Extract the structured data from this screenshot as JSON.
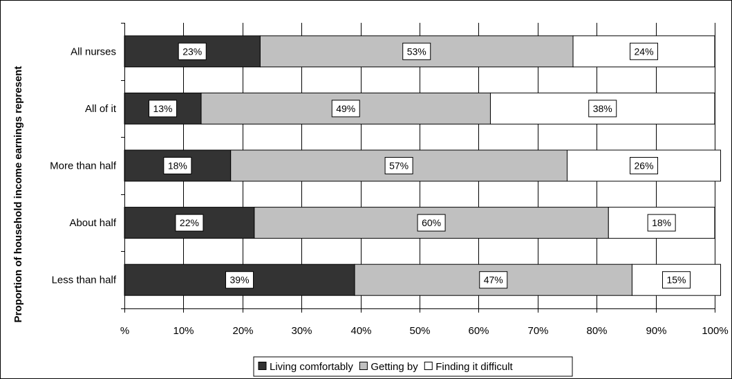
{
  "chart_data": {
    "type": "bar",
    "orientation": "horizontal",
    "stacked": true,
    "categories": [
      "All nurses",
      "All of it",
      "More than half",
      "About half",
      "Less than half"
    ],
    "series": [
      {
        "name": "Living comfortably",
        "values": [
          23,
          13,
          18,
          22,
          39
        ],
        "labels": [
          "23%",
          "13%",
          "18%",
          "22%",
          "39%"
        ]
      },
      {
        "name": "Getting by",
        "values": [
          53,
          49,
          57,
          60,
          47
        ],
        "labels": [
          "53%",
          "49%",
          "57%",
          "60%",
          "47%"
        ]
      },
      {
        "name": "Finding it difficult",
        "values": [
          24,
          38,
          26,
          18,
          15
        ],
        "labels": [
          "24%",
          "38%",
          "26%",
          "18%",
          "15%"
        ]
      }
    ],
    "xlim": [
      0,
      100
    ],
    "xticks": [
      0,
      10,
      20,
      30,
      40,
      50,
      60,
      70,
      80,
      90,
      100
    ],
    "xtick_labels": [
      "%",
      "10%",
      "20%",
      "30%",
      "40%",
      "50%",
      "60%",
      "70%",
      "80%",
      "90%",
      "100%"
    ],
    "ylabel": "Proportion of household income earnings represent",
    "xlabel": "",
    "title": "",
    "grid": "vertical",
    "legend_position": "bottom",
    "colors": [
      "#333333",
      "#c0c0c0",
      "#ffffff"
    ]
  }
}
